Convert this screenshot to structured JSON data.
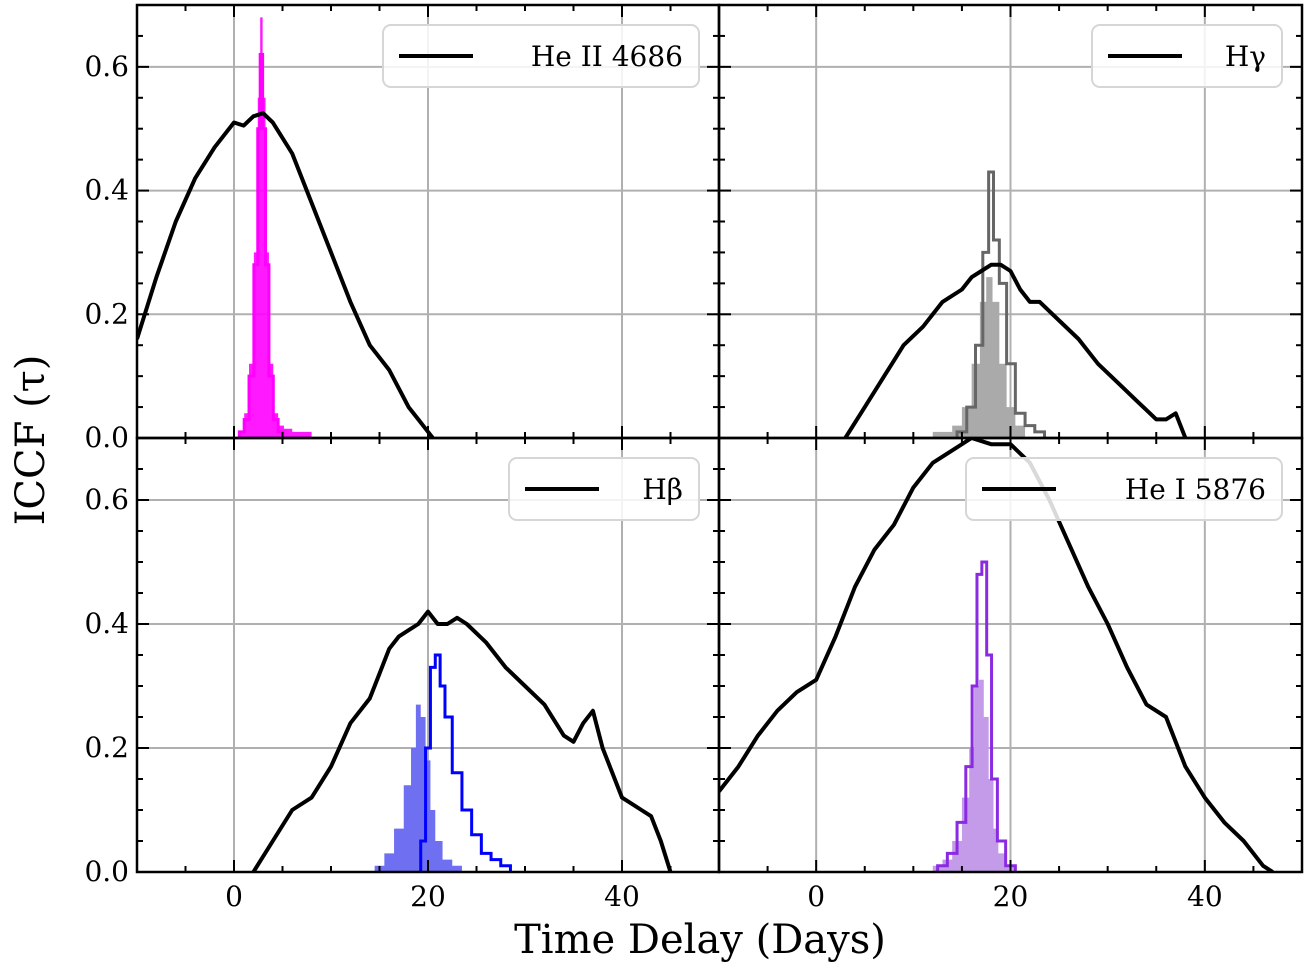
{
  "figure": {
    "ylabel": "ICCF (τ)",
    "xlabel": "Time Delay (Days)"
  },
  "chart_data": [
    {
      "type": "line",
      "panel": "top-left",
      "legend": "He II 4686",
      "legend_placement": "top-right",
      "hist_color": "#ff00ff",
      "xlim": [
        -10,
        50
      ],
      "ylim": [
        0,
        0.7
      ],
      "xticks": [
        0,
        20,
        40
      ],
      "yticks": [
        0.0,
        0.2,
        0.4,
        0.6
      ],
      "grid": true,
      "ccf": {
        "x": [
          -10,
          -8,
          -6,
          -4,
          -2,
          0,
          1,
          2,
          3,
          4,
          6,
          8,
          10,
          12,
          14,
          16,
          18,
          19,
          20,
          20.5
        ],
        "y": [
          0.16,
          0.26,
          0.35,
          0.42,
          0.47,
          0.51,
          0.505,
          0.52,
          0.525,
          0.51,
          0.46,
          0.38,
          0.3,
          0.22,
          0.15,
          0.11,
          0.05,
          0.03,
          0.01,
          0.0
        ]
      },
      "hist_filled": {
        "x": [
          0.8,
          1.3,
          1.8,
          2.3,
          2.6,
          2.8,
          3.1,
          3.4,
          3.8,
          4.3,
          4.8,
          5.5,
          6.5,
          7.5
        ],
        "y": [
          0.01,
          0.04,
          0.12,
          0.3,
          0.55,
          0.68,
          0.55,
          0.3,
          0.12,
          0.04,
          0.02,
          0.015,
          0.01,
          0.01
        ]
      },
      "hist_outline": {
        "x": [
          0.8,
          1.3,
          1.8,
          2.3,
          2.6,
          2.8,
          3.1,
          3.4,
          3.8,
          4.3,
          4.8
        ],
        "y": [
          0.01,
          0.03,
          0.1,
          0.28,
          0.5,
          0.62,
          0.5,
          0.28,
          0.1,
          0.03,
          0.01
        ]
      }
    },
    {
      "type": "line",
      "panel": "top-right",
      "legend": "Hγ",
      "legend_placement": "top-right",
      "hist_color": "#666666",
      "hist_fill_color": "#aaaaaa",
      "xlim": [
        -10,
        50
      ],
      "ylim": [
        0,
        0.7
      ],
      "xticks": [
        0,
        20,
        40
      ],
      "yticks": [
        0.0,
        0.2,
        0.4,
        0.6
      ],
      "grid": true,
      "ccf": {
        "x": [
          3,
          5,
          7,
          9,
          11,
          13,
          15,
          16,
          17,
          18,
          19,
          20,
          21,
          22,
          23,
          25,
          27,
          29,
          31,
          33,
          35,
          36,
          37,
          38
        ],
        "y": [
          0.0,
          0.05,
          0.1,
          0.15,
          0.18,
          0.22,
          0.24,
          0.26,
          0.27,
          0.28,
          0.28,
          0.27,
          0.24,
          0.22,
          0.22,
          0.19,
          0.16,
          0.12,
          0.09,
          0.06,
          0.03,
          0.03,
          0.04,
          0.0
        ]
      },
      "hist_filled": {
        "x": [
          12.5,
          13.5,
          14.5,
          15.5,
          16.5,
          17.2,
          17.8,
          18.5,
          19.2,
          20,
          21
        ],
        "y": [
          0.01,
          0.01,
          0.02,
          0.05,
          0.12,
          0.22,
          0.26,
          0.22,
          0.12,
          0.05,
          0.02
        ]
      },
      "hist_outline": {
        "x": [
          15,
          16,
          16.8,
          17.5,
          18,
          18.5,
          19.2,
          20,
          21,
          22,
          23
        ],
        "y": [
          0.01,
          0.05,
          0.15,
          0.3,
          0.43,
          0.32,
          0.25,
          0.12,
          0.04,
          0.02,
          0.01
        ]
      }
    },
    {
      "type": "line",
      "panel": "bottom-left",
      "legend": "Hβ",
      "legend_placement": "top-right",
      "hist_color": "#0000ff",
      "hist_fill_color": "#6f6ff2",
      "xlim": [
        -10,
        50
      ],
      "ylim": [
        0,
        0.7
      ],
      "xticks": [
        0,
        20,
        40
      ],
      "yticks": [
        0.0,
        0.2,
        0.4,
        0.6
      ],
      "grid": true,
      "ccf": {
        "x": [
          2,
          4,
          6,
          8,
          10,
          12,
          14,
          16,
          17,
          18,
          19,
          20,
          21,
          22,
          23,
          24,
          26,
          28,
          30,
          32,
          34,
          35,
          36,
          37,
          38,
          40,
          42,
          43,
          44,
          45
        ],
        "y": [
          0.0,
          0.05,
          0.1,
          0.12,
          0.17,
          0.24,
          0.28,
          0.36,
          0.38,
          0.39,
          0.4,
          0.42,
          0.4,
          0.4,
          0.41,
          0.4,
          0.37,
          0.33,
          0.3,
          0.27,
          0.22,
          0.21,
          0.24,
          0.26,
          0.2,
          0.12,
          0.1,
          0.09,
          0.05,
          0.0
        ]
      },
      "hist_filled": {
        "x": [
          15,
          16,
          17,
          18,
          18.5,
          19,
          19.5,
          20,
          20.5,
          21,
          22,
          23
        ],
        "y": [
          0.01,
          0.03,
          0.07,
          0.14,
          0.2,
          0.27,
          0.25,
          0.18,
          0.1,
          0.05,
          0.02,
          0.01
        ]
      },
      "hist_outline": {
        "x": [
          19.5,
          20,
          20.5,
          21,
          21.5,
          22,
          23,
          24,
          25,
          26,
          27,
          28
        ],
        "y": [
          0.05,
          0.2,
          0.33,
          0.35,
          0.3,
          0.25,
          0.16,
          0.1,
          0.06,
          0.03,
          0.02,
          0.01
        ]
      }
    },
    {
      "type": "line",
      "panel": "bottom-right",
      "legend": "He I 5876",
      "legend_placement": "top-right",
      "hist_color": "#8a2be2",
      "hist_fill_color": "#c39be8",
      "xlim": [
        -10,
        50
      ],
      "ylim": [
        0,
        0.7
      ],
      "xticks": [
        0,
        20,
        40
      ],
      "yticks": [
        0.0,
        0.2,
        0.4,
        0.6
      ],
      "grid": true,
      "ccf": {
        "x": [
          -10,
          -8,
          -6,
          -4,
          -2,
          0,
          2,
          4,
          6,
          8,
          10,
          12,
          14,
          16,
          18,
          20,
          22,
          24,
          26,
          28,
          30,
          32,
          34,
          36,
          38,
          40,
          42,
          44,
          46,
          47
        ],
        "y": [
          0.13,
          0.17,
          0.22,
          0.26,
          0.29,
          0.31,
          0.38,
          0.46,
          0.52,
          0.56,
          0.62,
          0.66,
          0.68,
          0.7,
          0.69,
          0.69,
          0.66,
          0.6,
          0.53,
          0.46,
          0.4,
          0.33,
          0.27,
          0.25,
          0.17,
          0.12,
          0.08,
          0.05,
          0.01,
          0.0
        ]
      },
      "hist_filled": {
        "x": [
          12.5,
          13.5,
          14.5,
          15.5,
          16,
          16.5,
          17,
          17.5,
          18,
          18.5,
          19,
          20
        ],
        "y": [
          0.01,
          0.02,
          0.05,
          0.12,
          0.2,
          0.3,
          0.31,
          0.25,
          0.15,
          0.07,
          0.03,
          0.01
        ]
      },
      "hist_outline": {
        "x": [
          13,
          14,
          15,
          15.8,
          16.3,
          16.8,
          17.3,
          17.8,
          18.3,
          19,
          20
        ],
        "y": [
          0.01,
          0.03,
          0.08,
          0.17,
          0.3,
          0.48,
          0.5,
          0.35,
          0.15,
          0.05,
          0.01
        ]
      }
    }
  ]
}
